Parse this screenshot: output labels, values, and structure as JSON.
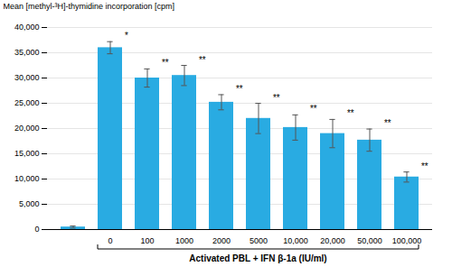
{
  "chart_data": {
    "type": "bar",
    "categories": [
      null,
      "0",
      "100",
      "1000",
      "2000",
      "5000",
      "10,000",
      "20,000",
      "50,000",
      "100,000"
    ],
    "values": [
      500,
      36000,
      30000,
      30500,
      25200,
      22000,
      20200,
      19000,
      17700,
      10400
    ],
    "errors": [
      200,
      1200,
      1800,
      2000,
      1500,
      3000,
      2500,
      2800,
      2200,
      1000
    ],
    "annotations": [
      null,
      "*",
      "**",
      "**",
      "**",
      "**",
      "**",
      "**",
      "**",
      "**"
    ],
    "color": "#29ABE2",
    "ylabel": "Mean [methyl-³H]-thymidine incorporation [cpm]",
    "xlabel": "Activated PBL + IFN β-1a (IU/ml)",
    "ylim": [
      0,
      40000
    ],
    "yticks": [
      0,
      {
        "value": 5000,
        "label": "5,000"
      },
      {
        "value": 10000,
        "label": "10,000"
      },
      {
        "value": 15000,
        "label": "15,000"
      },
      {
        "value": 20000,
        "label": "20,000"
      },
      {
        "value": 25000,
        "label": "25,000"
      },
      {
        "value": 30000,
        "label": "30,000"
      },
      {
        "value": 35000,
        "label": "35,000"
      },
      {
        "value": 40000,
        "label": "40,000"
      }
    ],
    "grid": true
  }
}
